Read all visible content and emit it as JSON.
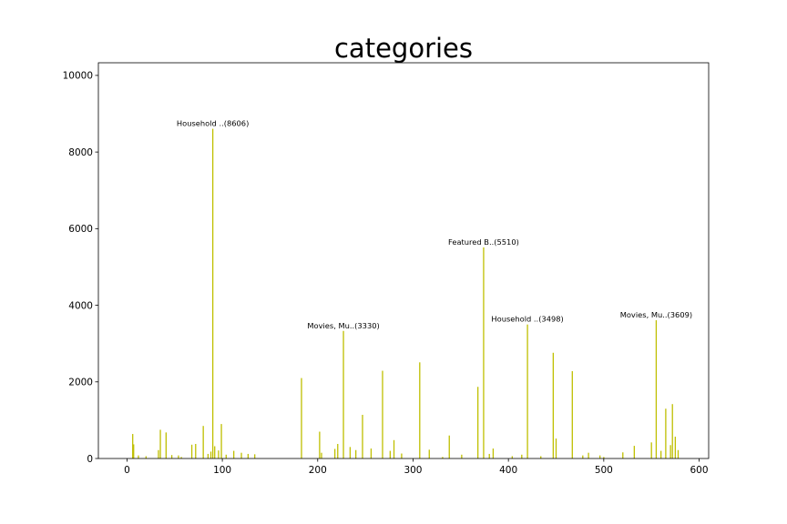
{
  "chart_data": {
    "type": "bar",
    "title": "categories",
    "xlabel": "",
    "ylabel": "",
    "xlim": [
      -30,
      610
    ],
    "ylim": [
      0,
      10330
    ],
    "xticks": [
      0,
      100,
      200,
      300,
      400,
      500,
      600
    ],
    "yticks": [
      0,
      2000,
      4000,
      6000,
      8000,
      10000
    ],
    "grid": false,
    "bar_color": "#bfbf00",
    "x": [
      6,
      7,
      12,
      20,
      33,
      35,
      41,
      47,
      54,
      57,
      68,
      72,
      80,
      85,
      88,
      90,
      92,
      96,
      99,
      104,
      112,
      120,
      127,
      134,
      183,
      202,
      204,
      218,
      221,
      227,
      234,
      240,
      247,
      256,
      268,
      276,
      280,
      288,
      307,
      317,
      331,
      338,
      351,
      368,
      374,
      380,
      384,
      404,
      414,
      420,
      434,
      447,
      450,
      467,
      478,
      484,
      496,
      500,
      520,
      532,
      550,
      555,
      560,
      565,
      570,
      572,
      575,
      578
    ],
    "values": [
      640,
      370,
      80,
      60,
      220,
      750,
      680,
      90,
      80,
      40,
      360,
      380,
      850,
      120,
      180,
      8606,
      320,
      210,
      900,
      100,
      200,
      150,
      120,
      110,
      2100,
      700,
      150,
      250,
      380,
      3330,
      300,
      220,
      1140,
      260,
      2290,
      200,
      480,
      130,
      2510,
      230,
      40,
      600,
      100,
      1870,
      5510,
      120,
      260,
      60,
      100,
      3498,
      60,
      2760,
      520,
      2280,
      80,
      150,
      80,
      40,
      160,
      330,
      420,
      3609,
      200,
      1300,
      350,
      1420,
      570,
      220
    ],
    "annotations": [
      {
        "text": "Household ..(8606)",
        "x": 90,
        "y": 8606
      },
      {
        "text": "Movies, Mu..(3330)",
        "x": 227,
        "y": 3330
      },
      {
        "text": "Featured B..(5510)",
        "x": 374,
        "y": 5510
      },
      {
        "text": "Household ..(3498)",
        "x": 420,
        "y": 3498
      },
      {
        "text": "Movies, Mu..(3609)",
        "x": 555,
        "y": 3609
      }
    ]
  }
}
